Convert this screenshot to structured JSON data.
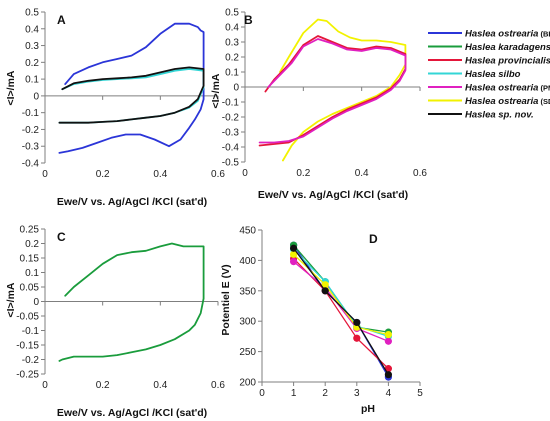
{
  "legend": {
    "entries": [
      {
        "name": "Haslea ostrearia",
        "suffix": " (BB)",
        "color": "#2b35d8"
      },
      {
        "name": "Haslea karadagensis",
        "suffix": "",
        "color": "#1a9c3c"
      },
      {
        "name": "Haslea provincialis",
        "suffix": "",
        "color": "#e4163a"
      },
      {
        "name": "Haslea silbo",
        "suffix": "",
        "color": "#33d6d6"
      },
      {
        "name": "Haslea ostrearia",
        "suffix": " (PM)",
        "color": "#e020c0"
      },
      {
        "name": "Haslea ostrearia",
        "suffix": " (SD)",
        "color": "#f2f200"
      },
      {
        "name": "Haslea sp. nov.",
        "suffix": "",
        "color": "#111111"
      }
    ]
  },
  "chart_data": [
    {
      "panel_label": "A",
      "type": "line",
      "xlabel": "Ewe/V vs. Ag/AgCl /KCl (sat'd)",
      "ylabel": "<I>/mA",
      "xlim": [
        0,
        0.6
      ],
      "ylim": [
        -0.4,
        0.5
      ],
      "x_ticks": [
        "0",
        "0.2",
        "0.4",
        "0.6"
      ],
      "y_ticks": [
        "-0.4",
        "-0.3",
        "-0.2",
        "-0.1",
        "0",
        "0.1",
        "0.2",
        "0.3",
        "0.4",
        "0.5"
      ],
      "series": [
        {
          "color": "#2b35d8",
          "x": [
            0.07,
            0.1,
            0.15,
            0.2,
            0.25,
            0.3,
            0.35,
            0.4,
            0.45,
            0.5,
            0.53,
            0.54,
            0.55,
            0.55,
            0.54,
            0.52,
            0.5,
            0.47,
            0.43,
            0.38,
            0.33,
            0.28,
            0.23,
            0.18,
            0.13,
            0.08,
            0.05
          ],
          "y": [
            0.07,
            0.13,
            0.17,
            0.2,
            0.22,
            0.24,
            0.29,
            0.37,
            0.43,
            0.43,
            0.41,
            0.39,
            0.38,
            -0.02,
            -0.08,
            -0.14,
            -0.19,
            -0.26,
            -0.3,
            -0.26,
            -0.23,
            -0.23,
            -0.25,
            -0.28,
            -0.31,
            -0.33,
            -0.34
          ]
        },
        {
          "color": "#33d6d6",
          "x": [
            0.06,
            0.1,
            0.15,
            0.2,
            0.25,
            0.3,
            0.35,
            0.4,
            0.45,
            0.5,
            0.55,
            0.55,
            0.53,
            0.5,
            0.45,
            0.4,
            0.35,
            0.3,
            0.25,
            0.2,
            0.15,
            0.1,
            0.05
          ],
          "y": [
            0.04,
            0.07,
            0.085,
            0.095,
            0.1,
            0.105,
            0.11,
            0.13,
            0.15,
            0.16,
            0.15,
            0.05,
            -0.03,
            -0.07,
            -0.1,
            -0.12,
            -0.13,
            -0.14,
            -0.15,
            -0.155,
            -0.16,
            -0.16,
            -0.16
          ]
        },
        {
          "color": "#111111",
          "x": [
            0.06,
            0.1,
            0.15,
            0.2,
            0.25,
            0.3,
            0.35,
            0.4,
            0.45,
            0.5,
            0.55,
            0.55,
            0.53,
            0.5,
            0.45,
            0.4,
            0.35,
            0.3,
            0.25,
            0.2,
            0.15,
            0.1,
            0.05
          ],
          "y": [
            0.04,
            0.075,
            0.09,
            0.1,
            0.105,
            0.11,
            0.12,
            0.14,
            0.16,
            0.17,
            0.16,
            0.06,
            -0.02,
            -0.065,
            -0.1,
            -0.12,
            -0.13,
            -0.14,
            -0.15,
            -0.155,
            -0.16,
            -0.16,
            -0.16
          ]
        }
      ]
    },
    {
      "panel_label": "B",
      "type": "line",
      "xlabel": "Ewe/V vs. Ag/AgCl /KCl (sat'd)",
      "ylabel": "<I>/mA",
      "xlim": [
        0,
        0.6
      ],
      "ylim": [
        -0.5,
        0.5
      ],
      "x_ticks": [
        "0",
        "0.2",
        "0.4",
        "0.6"
      ],
      "y_ticks": [
        "-0.5",
        "-0.4",
        "-0.3",
        "-0.2",
        "-0.1",
        "0",
        "0.1",
        "0.2",
        "0.3",
        "0.4",
        "0.5"
      ],
      "series": [
        {
          "color": "#f2f200",
          "x": [
            0.12,
            0.15,
            0.2,
            0.25,
            0.28,
            0.32,
            0.36,
            0.4,
            0.45,
            0.5,
            0.55,
            0.55,
            0.53,
            0.5,
            0.45,
            0.4,
            0.35,
            0.3,
            0.25,
            0.2,
            0.16,
            0.13
          ],
          "y": [
            0.1,
            0.2,
            0.36,
            0.45,
            0.44,
            0.37,
            0.33,
            0.31,
            0.31,
            0.3,
            0.28,
            0.15,
            0.08,
            0.0,
            -0.06,
            -0.1,
            -0.14,
            -0.18,
            -0.23,
            -0.3,
            -0.39,
            -0.49
          ]
        },
        {
          "color": "#e4163a",
          "x": [
            0.07,
            0.1,
            0.15,
            0.2,
            0.25,
            0.3,
            0.35,
            0.4,
            0.45,
            0.5,
            0.55,
            0.55,
            0.53,
            0.5,
            0.45,
            0.4,
            0.35,
            0.3,
            0.25,
            0.2,
            0.15,
            0.1,
            0.05
          ],
          "y": [
            -0.03,
            0.05,
            0.15,
            0.28,
            0.34,
            0.3,
            0.26,
            0.25,
            0.27,
            0.26,
            0.22,
            0.12,
            0.05,
            -0.01,
            -0.07,
            -0.11,
            -0.15,
            -0.2,
            -0.26,
            -0.32,
            -0.37,
            -0.38,
            -0.39
          ]
        },
        {
          "color": "#e020c0",
          "x": [
            0.08,
            0.12,
            0.16,
            0.2,
            0.25,
            0.3,
            0.35,
            0.4,
            0.45,
            0.5,
            0.55,
            0.55,
            0.53,
            0.5,
            0.45,
            0.4,
            0.35,
            0.3,
            0.25,
            0.2,
            0.15,
            0.1,
            0.05
          ],
          "y": [
            0.0,
            0.08,
            0.16,
            0.27,
            0.32,
            0.29,
            0.25,
            0.24,
            0.26,
            0.25,
            0.21,
            0.11,
            0.04,
            -0.02,
            -0.08,
            -0.12,
            -0.16,
            -0.21,
            -0.27,
            -0.33,
            -0.36,
            -0.37,
            -0.37
          ]
        }
      ]
    },
    {
      "panel_label": "C",
      "type": "line",
      "xlabel": "Ewe/V vs. Ag/AgCl /KCl (sat'd)",
      "ylabel": "<I>/mA",
      "xlim": [
        0,
        0.6
      ],
      "ylim": [
        -0.25,
        0.25
      ],
      "x_ticks": [
        "0",
        "0.2",
        "0.4",
        "0.6"
      ],
      "y_ticks": [
        "-0.25",
        "-0.2",
        "-0.15",
        "-0.1",
        "-0.05",
        "0",
        "0.05",
        "0.1",
        "0.15",
        "0.2",
        "0.25"
      ],
      "series": [
        {
          "color": "#1a9c3c",
          "x": [
            0.07,
            0.1,
            0.15,
            0.2,
            0.25,
            0.3,
            0.35,
            0.4,
            0.44,
            0.48,
            0.52,
            0.55,
            0.55,
            0.54,
            0.52,
            0.5,
            0.45,
            0.4,
            0.35,
            0.3,
            0.25,
            0.2,
            0.15,
            0.1,
            0.06,
            0.05
          ],
          "y": [
            0.02,
            0.05,
            0.09,
            0.13,
            0.16,
            0.17,
            0.175,
            0.19,
            0.2,
            0.19,
            0.19,
            0.19,
            0.01,
            -0.04,
            -0.08,
            -0.1,
            -0.13,
            -0.15,
            -0.165,
            -0.175,
            -0.185,
            -0.19,
            -0.19,
            -0.19,
            -0.2,
            -0.205
          ]
        }
      ]
    },
    {
      "panel_label": "D",
      "type": "line",
      "xlabel": "pH",
      "ylabel": "Potentiel E (V)",
      "xlim": [
        0,
        5
      ],
      "ylim": [
        200,
        450
      ],
      "x_ticks": [
        "0",
        "1",
        "2",
        "3",
        "4",
        "5"
      ],
      "y_ticks": [
        "200",
        "250",
        "300",
        "350",
        "400",
        "450"
      ],
      "x": [
        1,
        2,
        3,
        4
      ],
      "series": [
        {
          "color": "#2b35d8",
          "values": [
            425,
            350,
            298,
            208
          ]
        },
        {
          "color": "#1a9c3c",
          "values": [
            425,
            365,
            290,
            282
          ]
        },
        {
          "color": "#e4163a",
          "values": [
            403,
            350,
            272,
            222
          ]
        },
        {
          "color": "#33d6d6",
          "values": [
            418,
            365,
            292,
            275
          ]
        },
        {
          "color": "#e020c0",
          "values": [
            398,
            355,
            288,
            267
          ]
        },
        {
          "color": "#f2f200",
          "values": [
            410,
            360,
            290,
            278
          ]
        },
        {
          "color": "#111111",
          "values": [
            420,
            350,
            298,
            212
          ]
        }
      ]
    }
  ]
}
